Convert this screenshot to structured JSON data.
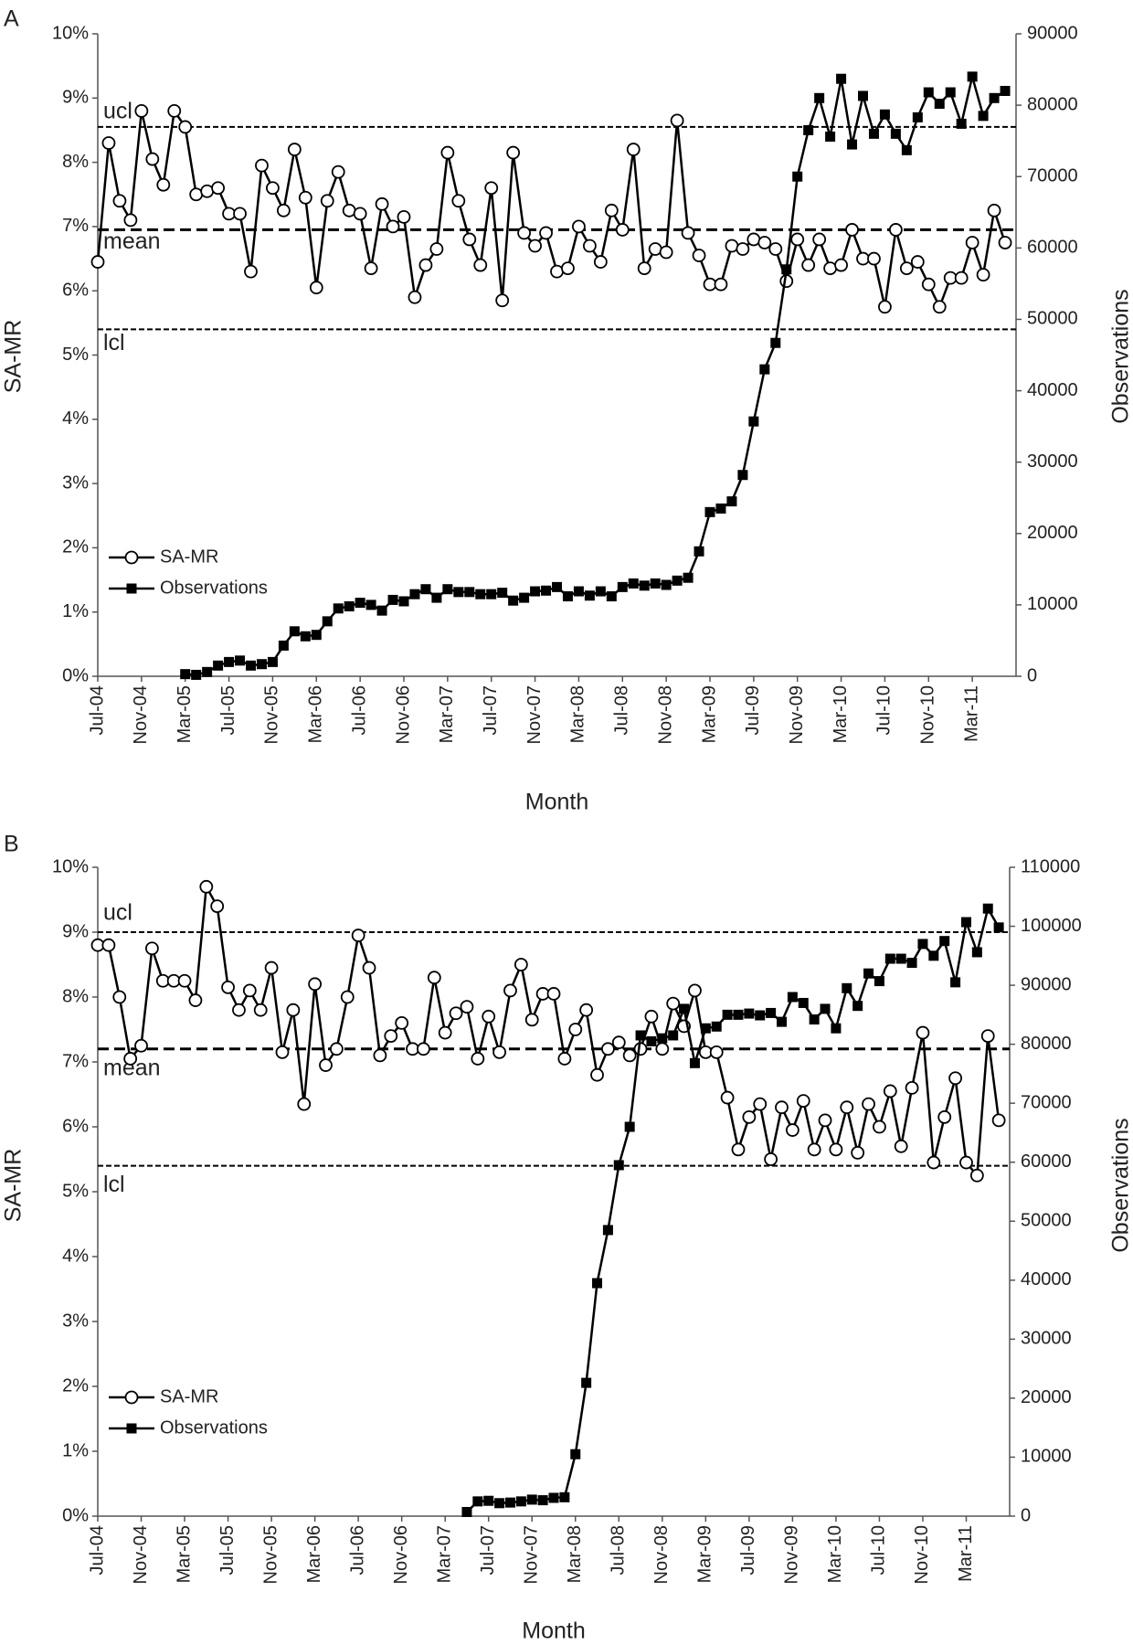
{
  "chart_data": [
    {
      "type": "line",
      "panel": "A",
      "xlabel": "Month",
      "ylabel": "SA-MR",
      "y2label": "Observations",
      "legend": "lower left",
      "categories": [
        "Jul-04",
        null,
        null,
        null,
        "Nov-04",
        null,
        null,
        null,
        "Mar-05",
        null,
        null,
        null,
        "Jul-05",
        null,
        null,
        null,
        "Nov-05",
        null,
        null,
        null,
        "Mar-06",
        null,
        null,
        null,
        "Jul-06",
        null,
        null,
        null,
        "Nov-06",
        null,
        null,
        null,
        "Mar-07",
        null,
        null,
        null,
        "Jul-07",
        null,
        null,
        null,
        "Nov-07",
        null,
        null,
        null,
        "Mar-08",
        null,
        null,
        null,
        "Jul-08",
        null,
        null,
        null,
        "Nov-08",
        null,
        null,
        null,
        "Mar-09",
        null,
        null,
        null,
        "Jul-09",
        null,
        null,
        null,
        "Nov-09",
        null,
        null,
        null,
        "Mar-10",
        null,
        null,
        null,
        "Jul-10",
        null,
        null,
        null,
        "Nov-10",
        null,
        null,
        null,
        "Mar-11",
        null,
        null,
        null
      ],
      "ylim": [
        0,
        10
      ],
      "yticks": [
        {
          "value": 0,
          "label": "0%"
        },
        {
          "value": 1,
          "label": "1%"
        },
        {
          "value": 2,
          "label": "2%"
        },
        {
          "value": 3,
          "label": "3%"
        },
        {
          "value": 4,
          "label": "4%"
        },
        {
          "value": 5,
          "label": "5%"
        },
        {
          "value": 6,
          "label": "6%"
        },
        {
          "value": 7,
          "label": "7%"
        },
        {
          "value": 8,
          "label": "8%"
        },
        {
          "value": 9,
          "label": "9%"
        },
        {
          "value": 10,
          "label": "10%"
        }
      ],
      "y2lim": [
        0,
        90000
      ],
      "y2ticks": [
        0,
        10000,
        20000,
        30000,
        40000,
        50000,
        60000,
        70000,
        80000,
        90000
      ],
      "series": [
        {
          "name": "SA-MR",
          "color": "#000000",
          "marker": "circle",
          "values": [
            6.45,
            8.3,
            7.4,
            7.1,
            8.8,
            8.05,
            7.65,
            8.8,
            8.55,
            7.5,
            7.55,
            7.6,
            7.2,
            7.2,
            6.3,
            7.95,
            7.6,
            7.25,
            8.2,
            7.45,
            6.05,
            7.4,
            7.85,
            7.25,
            7.2,
            6.35,
            7.35,
            7.0,
            7.15,
            5.9,
            6.4,
            6.65,
            8.15,
            7.4,
            6.8,
            6.4,
            7.6,
            5.85,
            8.15,
            6.9,
            6.7,
            6.9,
            6.3,
            6.35,
            7.0,
            6.7,
            6.45,
            7.25,
            6.95,
            8.2,
            6.35,
            6.65,
            6.6,
            8.65,
            6.9,
            6.55,
            6.1,
            6.1,
            6.7,
            6.65,
            6.8,
            6.75,
            6.65,
            6.15,
            6.8,
            6.4,
            6.8,
            6.35,
            6.4,
            6.95,
            6.5,
            6.5,
            5.75,
            6.95,
            6.35,
            6.45,
            6.1,
            5.75,
            6.2,
            6.2,
            6.75,
            6.25,
            7.25,
            6.75
          ]
        },
        {
          "name": "Observations",
          "color": "#000000",
          "marker": "square",
          "axis": "y2",
          "values": [
            null,
            null,
            null,
            null,
            null,
            null,
            null,
            null,
            300,
            200,
            600,
            1500,
            2000,
            2200,
            1500,
            1700,
            2000,
            4300,
            6300,
            5600,
            5800,
            7700,
            9500,
            9800,
            10300,
            10000,
            9200,
            10700,
            10500,
            11500,
            12200,
            11000,
            12200,
            11800,
            11800,
            11500,
            11500,
            11700,
            10600,
            11000,
            11900,
            12000,
            12500,
            11200,
            11900,
            11300,
            11900,
            11200,
            12500,
            13000,
            12700,
            13000,
            12800,
            13400,
            13800,
            17500,
            23000,
            23500,
            24500,
            28200,
            35700,
            43000,
            46700,
            57000,
            70000,
            76500,
            81000,
            75600,
            83700,
            74500,
            81300,
            76000,
            78700,
            76000,
            73700,
            78300,
            81800,
            80200,
            81800,
            77400,
            84000,
            78500,
            81000,
            82000
          ]
        }
      ],
      "control_lines": [
        {
          "label": "ucl",
          "value": 8.55
        },
        {
          "label": "mean",
          "value": 6.95
        },
        {
          "label": "lcl",
          "value": 5.4
        }
      ]
    },
    {
      "type": "line",
      "panel": "B",
      "xlabel": "Month",
      "ylabel": "SA-MR",
      "y2label": "Observations",
      "legend": "lower left",
      "categories": [
        "Jul-04",
        null,
        null,
        null,
        "Nov-04",
        null,
        null,
        null,
        "Mar-05",
        null,
        null,
        null,
        "Jul-05",
        null,
        null,
        null,
        "Nov-05",
        null,
        null,
        null,
        "Mar-06",
        null,
        null,
        null,
        "Jul-06",
        null,
        null,
        null,
        "Nov-06",
        null,
        null,
        null,
        "Mar-07",
        null,
        null,
        null,
        "Jul-07",
        null,
        null,
        null,
        "Nov-07",
        null,
        null,
        null,
        "Mar-08",
        null,
        null,
        null,
        "Jul-08",
        null,
        null,
        null,
        "Nov-08",
        null,
        null,
        null,
        "Mar-09",
        null,
        null,
        null,
        "Jul-09",
        null,
        null,
        null,
        "Nov-09",
        null,
        null,
        null,
        "Mar-10",
        null,
        null,
        null,
        "Jul-10",
        null,
        null,
        null,
        "Nov-10",
        null,
        null,
        null,
        "Mar-11",
        null,
        null,
        null
      ],
      "ylim": [
        0,
        10
      ],
      "yticks": [
        {
          "value": 0,
          "label": "0%"
        },
        {
          "value": 1,
          "label": "1%"
        },
        {
          "value": 2,
          "label": "2%"
        },
        {
          "value": 3,
          "label": "3%"
        },
        {
          "value": 4,
          "label": "4%"
        },
        {
          "value": 5,
          "label": "5%"
        },
        {
          "value": 6,
          "label": "6%"
        },
        {
          "value": 7,
          "label": "7%"
        },
        {
          "value": 8,
          "label": "8%"
        },
        {
          "value": 9,
          "label": "9%"
        },
        {
          "value": 10,
          "label": "10%"
        }
      ],
      "y2lim": [
        0,
        110000
      ],
      "y2ticks": [
        0,
        10000,
        20000,
        30000,
        40000,
        50000,
        60000,
        70000,
        80000,
        90000,
        100000,
        110000
      ],
      "series": [
        {
          "name": "SA-MR",
          "color": "#000000",
          "marker": "circle",
          "values": [
            8.8,
            8.8,
            8.0,
            7.05,
            7.25,
            8.75,
            8.25,
            8.25,
            8.25,
            7.95,
            9.7,
            9.4,
            8.15,
            7.8,
            8.1,
            7.8,
            8.45,
            7.15,
            7.8,
            6.35,
            8.2,
            6.95,
            7.2,
            8.0,
            8.95,
            8.45,
            7.1,
            7.4,
            7.6,
            7.2,
            7.2,
            8.3,
            7.45,
            7.75,
            7.85,
            7.05,
            7.7,
            7.15,
            8.1,
            8.5,
            7.65,
            8.05,
            8.05,
            7.05,
            7.5,
            7.8,
            6.8,
            7.2,
            7.3,
            7.1,
            7.2,
            7.7,
            7.2,
            7.9,
            7.55,
            8.1,
            7.15,
            7.15,
            6.45,
            5.65,
            6.15,
            6.35,
            5.5,
            6.3,
            5.95,
            6.4,
            5.65,
            6.1,
            5.65,
            6.3,
            5.6,
            6.35,
            6.0,
            6.55,
            5.7,
            6.6,
            7.45,
            5.45,
            6.15,
            6.75,
            5.45,
            5.25,
            7.4,
            6.1
          ]
        },
        {
          "name": "Observations",
          "color": "#000000",
          "marker": "square",
          "axis": "y2",
          "values": [
            null,
            null,
            null,
            null,
            null,
            null,
            null,
            null,
            null,
            null,
            null,
            null,
            null,
            null,
            null,
            null,
            null,
            null,
            null,
            null,
            null,
            null,
            null,
            null,
            null,
            null,
            null,
            null,
            null,
            null,
            null,
            null,
            null,
            null,
            700,
            2500,
            2600,
            2200,
            2300,
            2500,
            2800,
            2700,
            3100,
            3200,
            10500,
            22600,
            39500,
            48500,
            59500,
            66000,
            81500,
            80500,
            81000,
            81500,
            86000,
            76800,
            82700,
            83000,
            85000,
            85000,
            85200,
            84900,
            85300,
            83800,
            88000,
            87000,
            84200,
            86000,
            82700,
            89500,
            86500,
            92000,
            90700,
            94500,
            94500,
            93800,
            97000,
            95000,
            97500,
            90500,
            100700,
            95600,
            103000,
            99800
          ]
        }
      ],
      "control_lines": [
        {
          "label": "ucl",
          "value": 9.0
        },
        {
          "label": "mean",
          "value": 7.2
        },
        {
          "label": "lcl",
          "value": 5.4
        }
      ]
    }
  ]
}
